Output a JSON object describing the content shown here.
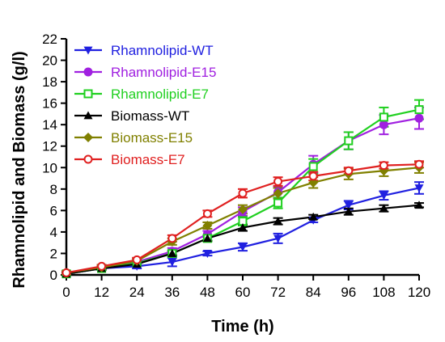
{
  "chart_data": {
    "type": "line",
    "xlabel": "Time (h)",
    "ylabel": "Rhamnolipid and Biomass (g/l)",
    "xlim": [
      0,
      120
    ],
    "ylim": [
      0,
      22
    ],
    "x_ticks": [
      0,
      12,
      24,
      36,
      48,
      60,
      72,
      84,
      96,
      108,
      120
    ],
    "y_ticks": [
      0,
      2,
      4,
      6,
      8,
      10,
      12,
      14,
      16,
      18,
      20,
      22
    ],
    "x": [
      0,
      12,
      24,
      36,
      48,
      60,
      72,
      84,
      96,
      108,
      120
    ],
    "legend_position": "top-left",
    "grid": false,
    "series": [
      {
        "name": "Rhamnolipid-WT",
        "color": "#2020e0",
        "marker": "triangle-down",
        "values": [
          0.1,
          0.6,
          0.8,
          1.2,
          2.0,
          2.6,
          3.4,
          5.1,
          6.5,
          7.4,
          8.1
        ],
        "errors": [
          0.15,
          0.15,
          0.2,
          0.4,
          0.2,
          0.35,
          0.45,
          0.2,
          0.4,
          0.4,
          0.55
        ]
      },
      {
        "name": "Rhamnolipid-E15",
        "color": "#a020e0",
        "marker": "circle",
        "values": [
          0.1,
          0.7,
          1.2,
          2.2,
          3.8,
          5.9,
          7.7,
          10.3,
          12.5,
          14.0,
          14.6
        ],
        "errors": [
          0.15,
          0.15,
          0.2,
          0.3,
          0.3,
          0.4,
          0.5,
          0.8,
          0.8,
          0.9,
          1.0
        ]
      },
      {
        "name": "Rhamnolipid-E7",
        "color": "#20d020",
        "marker": "square-open",
        "values": [
          0.1,
          0.6,
          1.1,
          2.0,
          3.4,
          5.0,
          6.7,
          10.1,
          12.5,
          14.7,
          15.4
        ],
        "errors": [
          0.15,
          0.15,
          0.2,
          0.3,
          0.3,
          0.4,
          0.5,
          0.7,
          0.8,
          0.9,
          0.9
        ]
      },
      {
        "name": "Biomass-WT",
        "color": "#000000",
        "marker": "triangle-up",
        "values": [
          0.1,
          0.6,
          1.0,
          2.0,
          3.4,
          4.4,
          5.0,
          5.4,
          5.9,
          6.2,
          6.5
        ],
        "errors": [
          0.1,
          0.1,
          0.15,
          0.2,
          0.2,
          0.3,
          0.3,
          0.2,
          0.3,
          0.3,
          0.2
        ]
      },
      {
        "name": "Biomass-E15",
        "color": "#808000",
        "marker": "diamond",
        "values": [
          0.2,
          0.7,
          1.3,
          3.1,
          4.6,
          6.1,
          7.6,
          8.6,
          9.4,
          9.7,
          10.0
        ],
        "errors": [
          0.15,
          0.15,
          0.2,
          0.3,
          0.3,
          0.4,
          0.5,
          0.5,
          0.5,
          0.5,
          0.5
        ]
      },
      {
        "name": "Biomass-E7",
        "color": "#e02020",
        "marker": "circle-open",
        "values": [
          0.2,
          0.8,
          1.4,
          3.4,
          5.7,
          7.6,
          8.7,
          9.2,
          9.7,
          10.2,
          10.3
        ],
        "errors": [
          0.15,
          0.15,
          0.2,
          0.3,
          0.3,
          0.4,
          0.4,
          0.4,
          0.3,
          0.3,
          0.3
        ]
      }
    ]
  }
}
